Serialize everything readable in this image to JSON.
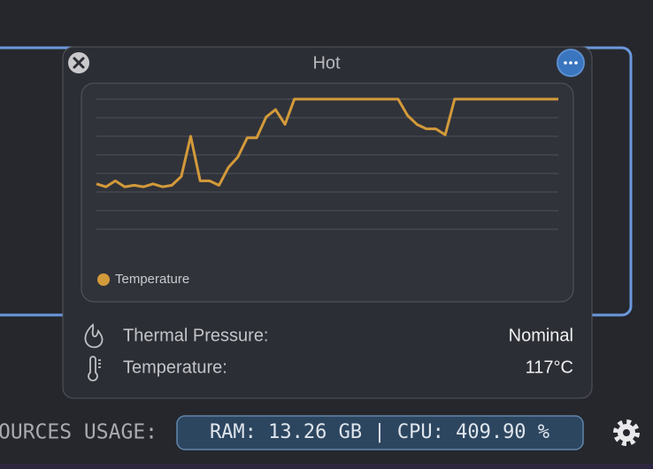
{
  "window": {
    "title": "Hot"
  },
  "chart_data": {
    "type": "line",
    "series": [
      {
        "name": "Temperature",
        "color": "#d39a3a",
        "values": [
          43,
          41,
          45,
          41,
          42,
          41,
          43,
          41,
          42,
          48,
          75,
          45,
          45,
          42,
          54,
          61,
          74,
          74,
          88,
          93,
          83,
          100,
          100,
          100,
          100,
          100,
          100,
          100,
          100,
          100,
          100,
          100,
          100,
          89,
          83,
          80,
          80,
          76,
          100,
          100,
          100,
          100,
          100,
          100,
          100,
          100,
          100,
          100,
          100,
          100
        ]
      }
    ],
    "ylim": [
      0,
      100
    ]
  },
  "rows": [
    {
      "label": "Thermal Pressure:",
      "value": "Nominal"
    },
    {
      "label": "Temperature:",
      "value": "117°C"
    }
  ],
  "status_bar": {
    "label": "OURCES USAGE:",
    "usage": "RAM: 13.26 GB | CPU: 409.90 %"
  }
}
